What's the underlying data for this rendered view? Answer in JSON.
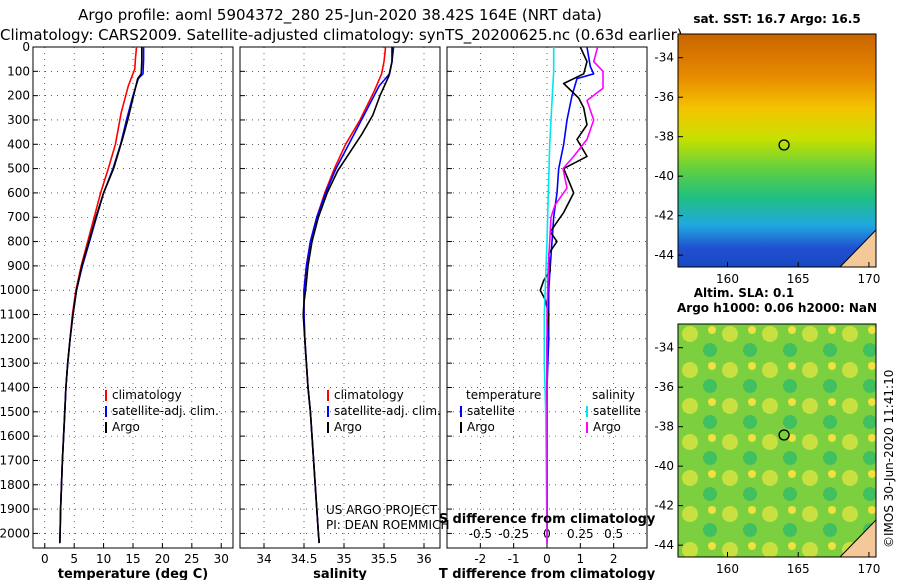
{
  "header": {
    "title_line1": "Argo profile: aoml 5904372_280 25-Jun-2020 38.42S 164E (NRT data)",
    "title_line2": "Climatology: CARS2009. Satellite-adjusted climatology: synTS_20200625.nc (0.63d earlier)"
  },
  "colors": {
    "climatology": "#ff0000",
    "satellite": "#0000ff",
    "argo": "#000000",
    "sat_salinity": "#00e5ee",
    "argo_salinity": "#ff00ff"
  },
  "chart_data": [
    {
      "type": "line",
      "name": "temperature",
      "xlabel": "temperature (deg C)",
      "ylabel": "depth",
      "xlim": [
        -2,
        32
      ],
      "ylim": [
        2060,
        0
      ],
      "xticks": [
        0,
        5,
        10,
        15,
        20,
        25,
        30
      ],
      "yticks": [
        0,
        100,
        200,
        300,
        400,
        500,
        600,
        700,
        800,
        900,
        1000,
        1100,
        1200,
        1300,
        1400,
        1500,
        1600,
        1700,
        1800,
        1900,
        2000
      ],
      "legend": [
        "climatology",
        "satellite-adj. clim.",
        "Argo"
      ],
      "legend_position": "lower-right",
      "series": [
        {
          "name": "climatology",
          "color": "#ff0000",
          "points": [
            [
              15.6,
              0
            ],
            [
              15.4,
              50
            ],
            [
              15.3,
              90
            ],
            [
              14.2,
              160
            ],
            [
              13,
              270
            ],
            [
              12,
              400
            ],
            [
              10.8,
              500
            ],
            [
              9.5,
              600
            ],
            [
              8.4,
              700
            ],
            [
              7.3,
              800
            ],
            [
              6.2,
              900
            ],
            [
              5.3,
              1000
            ],
            [
              4.7,
              1100
            ],
            [
              4.3,
              1200
            ],
            [
              3.9,
              1300
            ],
            [
              3.6,
              1400
            ],
            [
              3.4,
              1500
            ],
            [
              3.2,
              1600
            ],
            [
              3,
              1700
            ],
            [
              2.85,
              1800
            ],
            [
              2.7,
              1900
            ],
            [
              2.6,
              2000
            ],
            [
              2.55,
              2040
            ]
          ]
        },
        {
          "name": "satellite-adj. clim.",
          "color": "#0000ff",
          "points": [
            [
              16.8,
              0
            ],
            [
              16.8,
              50
            ],
            [
              16.7,
              110
            ],
            [
              15.9,
              130
            ],
            [
              15,
              200
            ],
            [
              13.9,
              300
            ],
            [
              12.9,
              400
            ],
            [
              11.6,
              500
            ],
            [
              10,
              600
            ],
            [
              8.8,
              700
            ],
            [
              7.6,
              800
            ],
            [
              6.4,
              900
            ],
            [
              5.4,
              1000
            ],
            [
              4.8,
              1100
            ],
            [
              4.3,
              1200
            ],
            [
              3.9,
              1300
            ],
            [
              3.6,
              1400
            ],
            [
              3.4,
              1500
            ],
            [
              3.2,
              1600
            ],
            [
              3,
              1700
            ],
            [
              2.85,
              1800
            ],
            [
              2.7,
              1900
            ],
            [
              2.6,
              2000
            ],
            [
              2.55,
              2040
            ]
          ]
        },
        {
          "name": "Argo",
          "color": "#000000",
          "points": [
            [
              16.5,
              0
            ],
            [
              16.5,
              60
            ],
            [
              16.4,
              110
            ],
            [
              15.8,
              130
            ],
            [
              15,
              210
            ],
            [
              14.1,
              300
            ],
            [
              13.2,
              380
            ],
            [
              11.7,
              500
            ],
            [
              10,
              600
            ],
            [
              8.7,
              700
            ],
            [
              7.5,
              800
            ],
            [
              6.3,
              900
            ],
            [
              5.4,
              1000
            ],
            [
              4.8,
              1100
            ],
            [
              4.3,
              1200
            ],
            [
              3.9,
              1300
            ],
            [
              3.6,
              1400
            ],
            [
              3.4,
              1500
            ],
            [
              3.2,
              1600
            ],
            [
              3,
              1700
            ],
            [
              2.85,
              1800
            ],
            [
              2.7,
              1900
            ],
            [
              2.6,
              2000
            ],
            [
              2.55,
              2040
            ]
          ]
        }
      ]
    },
    {
      "type": "line",
      "name": "salinity",
      "xlabel": "salinity",
      "ylabel": "depth",
      "xlim": [
        33.7,
        36.2
      ],
      "ylim": [
        2060,
        0
      ],
      "xticks": [
        34,
        34.5,
        35,
        35.5,
        36
      ],
      "legend": [
        "climatology",
        "satellite-adj. clim.",
        "Argo"
      ],
      "legend_position": "lower-right",
      "annotation_line1": "US ARGO PROJECT",
      "annotation_line2": "PI: DEAN ROEMMICH",
      "series": [
        {
          "name": "climatology",
          "color": "#ff0000",
          "points": [
            [
              35.52,
              0
            ],
            [
              35.5,
              60
            ],
            [
              35.47,
              110
            ],
            [
              35.38,
              180
            ],
            [
              35.2,
              300
            ],
            [
              35.02,
              400
            ],
            [
              34.88,
              500
            ],
            [
              34.76,
              600
            ],
            [
              34.66,
              700
            ],
            [
              34.58,
              800
            ],
            [
              34.53,
              900
            ],
            [
              34.5,
              1000
            ],
            [
              34.5,
              1100
            ],
            [
              34.51,
              1200
            ],
            [
              34.53,
              1300
            ],
            [
              34.55,
              1400
            ],
            [
              34.58,
              1500
            ],
            [
              34.6,
              1600
            ],
            [
              34.62,
              1700
            ],
            [
              34.64,
              1800
            ],
            [
              34.66,
              1900
            ],
            [
              34.68,
              2000
            ],
            [
              34.69,
              2040
            ]
          ]
        },
        {
          "name": "satellite-adj. clim.",
          "color": "#0000ff",
          "points": [
            [
              35.62,
              0
            ],
            [
              35.6,
              60
            ],
            [
              35.57,
              110
            ],
            [
              35.44,
              160
            ],
            [
              35.25,
              280
            ],
            [
              35.06,
              400
            ],
            [
              34.9,
              500
            ],
            [
              34.77,
              600
            ],
            [
              34.66,
              700
            ],
            [
              34.58,
              800
            ],
            [
              34.53,
              900
            ],
            [
              34.5,
              1000
            ],
            [
              34.5,
              1100
            ],
            [
              34.51,
              1200
            ],
            [
              34.53,
              1300
            ],
            [
              34.55,
              1400
            ],
            [
              34.58,
              1500
            ],
            [
              34.6,
              1600
            ],
            [
              34.62,
              1700
            ],
            [
              34.64,
              1800
            ],
            [
              34.66,
              1900
            ],
            [
              34.68,
              2000
            ],
            [
              34.69,
              2040
            ]
          ]
        },
        {
          "name": "Argo",
          "color": "#000000",
          "points": [
            [
              35.6,
              0
            ],
            [
              35.6,
              60
            ],
            [
              35.56,
              120
            ],
            [
              35.45,
              200
            ],
            [
              35.36,
              280
            ],
            [
              35.22,
              360
            ],
            [
              35.08,
              430
            ],
            [
              34.92,
              510
            ],
            [
              34.79,
              600
            ],
            [
              34.68,
              700
            ],
            [
              34.6,
              800
            ],
            [
              34.55,
              900
            ],
            [
              34.52,
              1000
            ],
            [
              34.5,
              1050
            ],
            [
              34.49,
              1100
            ],
            [
              34.5,
              1150
            ],
            [
              34.51,
              1200
            ],
            [
              34.53,
              1300
            ],
            [
              34.55,
              1400
            ],
            [
              34.58,
              1500
            ],
            [
              34.6,
              1600
            ],
            [
              34.62,
              1700
            ],
            [
              34.64,
              1800
            ],
            [
              34.66,
              1900
            ],
            [
              34.68,
              2000
            ],
            [
              34.69,
              2040
            ]
          ]
        }
      ]
    },
    {
      "type": "line",
      "name": "difference",
      "xlabel": "T difference from climatology",
      "top_axis_label": "S difference from climatology",
      "ylabel": "depth",
      "xlim": [
        -3,
        3
      ],
      "ylim": [
        2060,
        0
      ],
      "xticks": [
        -2,
        -1,
        0,
        1,
        2
      ],
      "s_xlim": [
        -0.75,
        0.75
      ],
      "s_xticks": [
        -0.5,
        -0.25,
        0,
        0.25,
        0.5
      ],
      "s_ticklabels": [
        "-0.5",
        "-0.25",
        "0",
        "0.25",
        "0.5"
      ],
      "legend_temperature_title": "temperature",
      "legend_salinity_title": "salinity",
      "legend_temperature": [
        "satellite",
        "Argo"
      ],
      "legend_salinity": [
        "satellite",
        "Argo"
      ],
      "legend_position": "lower-center",
      "series": [
        {
          "name": "T satellite",
          "quantity": "temperature",
          "color": "#0000ff",
          "points": [
            [
              1.2,
              0
            ],
            [
              1.3,
              80
            ],
            [
              1.4,
              110
            ],
            [
              0.9,
              130
            ],
            [
              0.75,
              200
            ],
            [
              0.6,
              300
            ],
            [
              0.5,
              400
            ],
            [
              0.35,
              500
            ],
            [
              0.3,
              600
            ],
            [
              0.2,
              700
            ],
            [
              0.15,
              800
            ],
            [
              0.1,
              900
            ],
            [
              0.05,
              1000
            ],
            [
              0.05,
              1200
            ],
            [
              0,
              1400
            ],
            [
              0,
              2040
            ]
          ]
        },
        {
          "name": "T Argo",
          "quantity": "temperature",
          "color": "#000000",
          "points": [
            [
              1.0,
              0
            ],
            [
              1.2,
              60
            ],
            [
              1.1,
              110
            ],
            [
              0.5,
              150
            ],
            [
              0.95,
              210
            ],
            [
              1.1,
              250
            ],
            [
              1.2,
              320
            ],
            [
              0.9,
              380
            ],
            [
              1.2,
              450
            ],
            [
              0.5,
              500
            ],
            [
              0.8,
              600
            ],
            [
              0.5,
              680
            ],
            [
              0.3,
              720
            ],
            [
              0.1,
              760
            ],
            [
              0.3,
              800
            ],
            [
              0.05,
              850
            ],
            [
              0.1,
              920
            ],
            [
              -0.1,
              960
            ],
            [
              -0.2,
              1000
            ],
            [
              -0.05,
              1040
            ],
            [
              0.05,
              1100
            ],
            [
              0,
              1200
            ],
            [
              0,
              2040
            ]
          ]
        },
        {
          "name": "S satellite",
          "quantity": "salinity",
          "color": "#00e5ee",
          "points": [
            [
              0.05,
              0
            ],
            [
              0.05,
              100
            ],
            [
              0.04,
              200
            ],
            [
              0.02,
              400
            ],
            [
              0.01,
              600
            ],
            [
              0,
              800
            ],
            [
              -0.02,
              1100
            ],
            [
              -0.02,
              1300
            ],
            [
              -0.01,
              1500
            ],
            [
              0,
              2040
            ]
          ]
        },
        {
          "name": "S Argo",
          "quantity": "salinity",
          "color": "#ff00ff",
          "points": [
            [
              0.38,
              0
            ],
            [
              0.35,
              60
            ],
            [
              0.42,
              100
            ],
            [
              0.42,
              170
            ],
            [
              0.3,
              220
            ],
            [
              0.35,
              300
            ],
            [
              0.3,
              380
            ],
            [
              0.2,
              450
            ],
            [
              0.12,
              500
            ],
            [
              0.15,
              580
            ],
            [
              0.06,
              650
            ],
            [
              0.03,
              700
            ],
            [
              0.02,
              800
            ],
            [
              0.01,
              900
            ],
            [
              0,
              1100
            ],
            [
              0,
              2040
            ]
          ]
        }
      ]
    }
  ],
  "sst_map": {
    "title": "sat. SST: 16.7 Argo: 16.5",
    "lat_labels": [
      "-34",
      "-36",
      "-38",
      "-40",
      "-42",
      "-44"
    ],
    "lon_labels": [
      "160",
      "165",
      "170"
    ],
    "profile_marker": [
      164,
      -38.42
    ],
    "lon_range": [
      156.5,
      170.5
    ],
    "lat_range": [
      -44.6,
      -32.8
    ]
  },
  "sla_map": {
    "title_line1": "Altim. SLA: 0.1",
    "title_line2": "Argo h1000: 0.06 h2000: NaN",
    "lat_labels": [
      "-34",
      "-36",
      "-38",
      "-40",
      "-42",
      "-44"
    ],
    "lon_labels": [
      "160",
      "165",
      "170"
    ],
    "profile_marker": [
      164,
      -38.42
    ],
    "lon_range": [
      156.5,
      170.5
    ],
    "lat_range": [
      -44.6,
      -32.8
    ]
  },
  "credit": "©IMOS 30-Jun-2020 11:41:10"
}
